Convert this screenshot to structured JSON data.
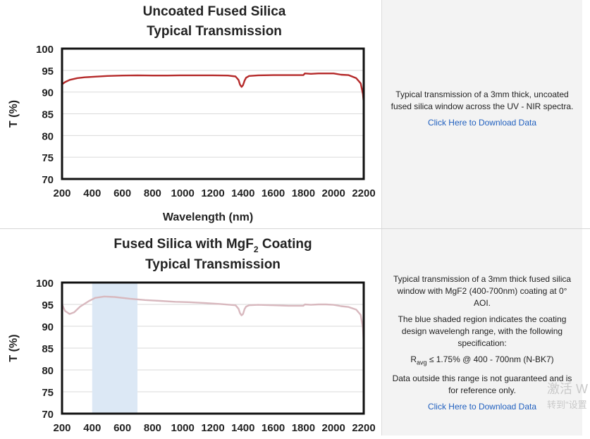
{
  "colors": {
    "curve1": "#b52a2a",
    "curve2": "#d8b8be",
    "shade": "#dce8f5",
    "link": "#1f5fbf",
    "panel_bg": "#f3f3f3"
  },
  "charts": [
    {
      "title_line1": "Uncoated Fused Silica",
      "title_line2": "Typical Transmission",
      "description": "Typical transmission of a 3mm thick, uncoated fused silica window across the UV - NIR spectra.",
      "download_link": "Click Here to Download Data"
    },
    {
      "title_line1_pre": "Fused Silica with MgF",
      "title_line1_sub": "2",
      "title_line1_post": " Coating",
      "title_line2": "Typical Transmission",
      "description_1": "Typical transmission of a 3mm thick fused silica window with MgF2 (400-700nm) coating at 0° AOI.",
      "description_2": "The blue shaded region indicates the coating design wavelengh range, with the following specification:",
      "spec_pre": "R",
      "spec_sub": "avg",
      "spec_post": " ≤ 1.75% @ 400 - 700nm (N-BK7)",
      "description_3": "Data outside this range is not guaranteed and is for reference only.",
      "download_link": "Click Here to Download Data"
    }
  ],
  "watermark": {
    "line1": "激活 W",
    "line2": "转到\"设置"
  },
  "chart_data": [
    {
      "type": "line",
      "title": "Uncoated Fused Silica Typical Transmission",
      "xlabel": "Wavelength (nm)",
      "ylabel": "T (%)",
      "xlim": [
        200,
        2200
      ],
      "ylim": [
        70,
        100
      ],
      "xticks": [
        200,
        400,
        600,
        800,
        1000,
        1200,
        1400,
        1600,
        1800,
        2000,
        2200
      ],
      "yticks": [
        70,
        75,
        80,
        85,
        90,
        95,
        100
      ],
      "grid": true,
      "x": [
        200,
        220,
        250,
        300,
        350,
        400,
        500,
        600,
        700,
        800,
        900,
        1000,
        1100,
        1200,
        1300,
        1350,
        1370,
        1380,
        1390,
        1400,
        1410,
        1420,
        1440,
        1500,
        1600,
        1700,
        1800,
        1810,
        1850,
        1900,
        1950,
        2000,
        2050,
        2100,
        2150,
        2180,
        2195,
        2200
      ],
      "values": [
        91.8,
        92.3,
        92.8,
        93.2,
        93.4,
        93.5,
        93.7,
        93.8,
        93.85,
        93.8,
        93.8,
        93.85,
        93.85,
        93.85,
        93.8,
        93.6,
        92.8,
        91.7,
        91.2,
        91.6,
        92.6,
        93.3,
        93.7,
        93.85,
        93.9,
        93.9,
        93.9,
        94.3,
        94.2,
        94.3,
        94.3,
        94.3,
        94.0,
        93.9,
        93.2,
        92.0,
        89.5,
        87.5
      ],
      "series": [
        {
          "values_ref": "values"
        }
      ]
    },
    {
      "type": "line",
      "title": "Fused Silica with MgF2 Coating Typical Transmission",
      "xlabel": "",
      "ylabel": "T (%)",
      "xlim": [
        200,
        2200
      ],
      "ylim": [
        70,
        100
      ],
      "xticks": [
        200,
        400,
        600,
        800,
        1000,
        1200,
        1400,
        1600,
        1800,
        2000,
        2200
      ],
      "yticks": [
        70,
        75,
        80,
        85,
        90,
        95,
        100
      ],
      "grid": true,
      "shaded_range": [
        400,
        700
      ],
      "x": [
        200,
        220,
        250,
        280,
        320,
        380,
        420,
        480,
        550,
        650,
        750,
        850,
        950,
        1050,
        1150,
        1250,
        1350,
        1370,
        1380,
        1390,
        1400,
        1410,
        1420,
        1440,
        1500,
        1600,
        1700,
        1800,
        1810,
        1850,
        1900,
        1950,
        2000,
        2050,
        2100,
        2150,
        2180,
        2195,
        2200
      ],
      "values": [
        95.0,
        93.5,
        92.8,
        93.2,
        94.5,
        95.8,
        96.5,
        96.8,
        96.7,
        96.3,
        96.0,
        95.8,
        95.6,
        95.5,
        95.3,
        95.1,
        94.8,
        94.0,
        93.0,
        92.5,
        92.8,
        93.9,
        94.5,
        94.8,
        94.9,
        94.8,
        94.7,
        94.7,
        95.0,
        94.9,
        95.0,
        95.0,
        94.9,
        94.6,
        94.4,
        93.8,
        92.6,
        89.5,
        86.0
      ],
      "series": [
        {
          "values_ref": "values"
        }
      ]
    }
  ]
}
